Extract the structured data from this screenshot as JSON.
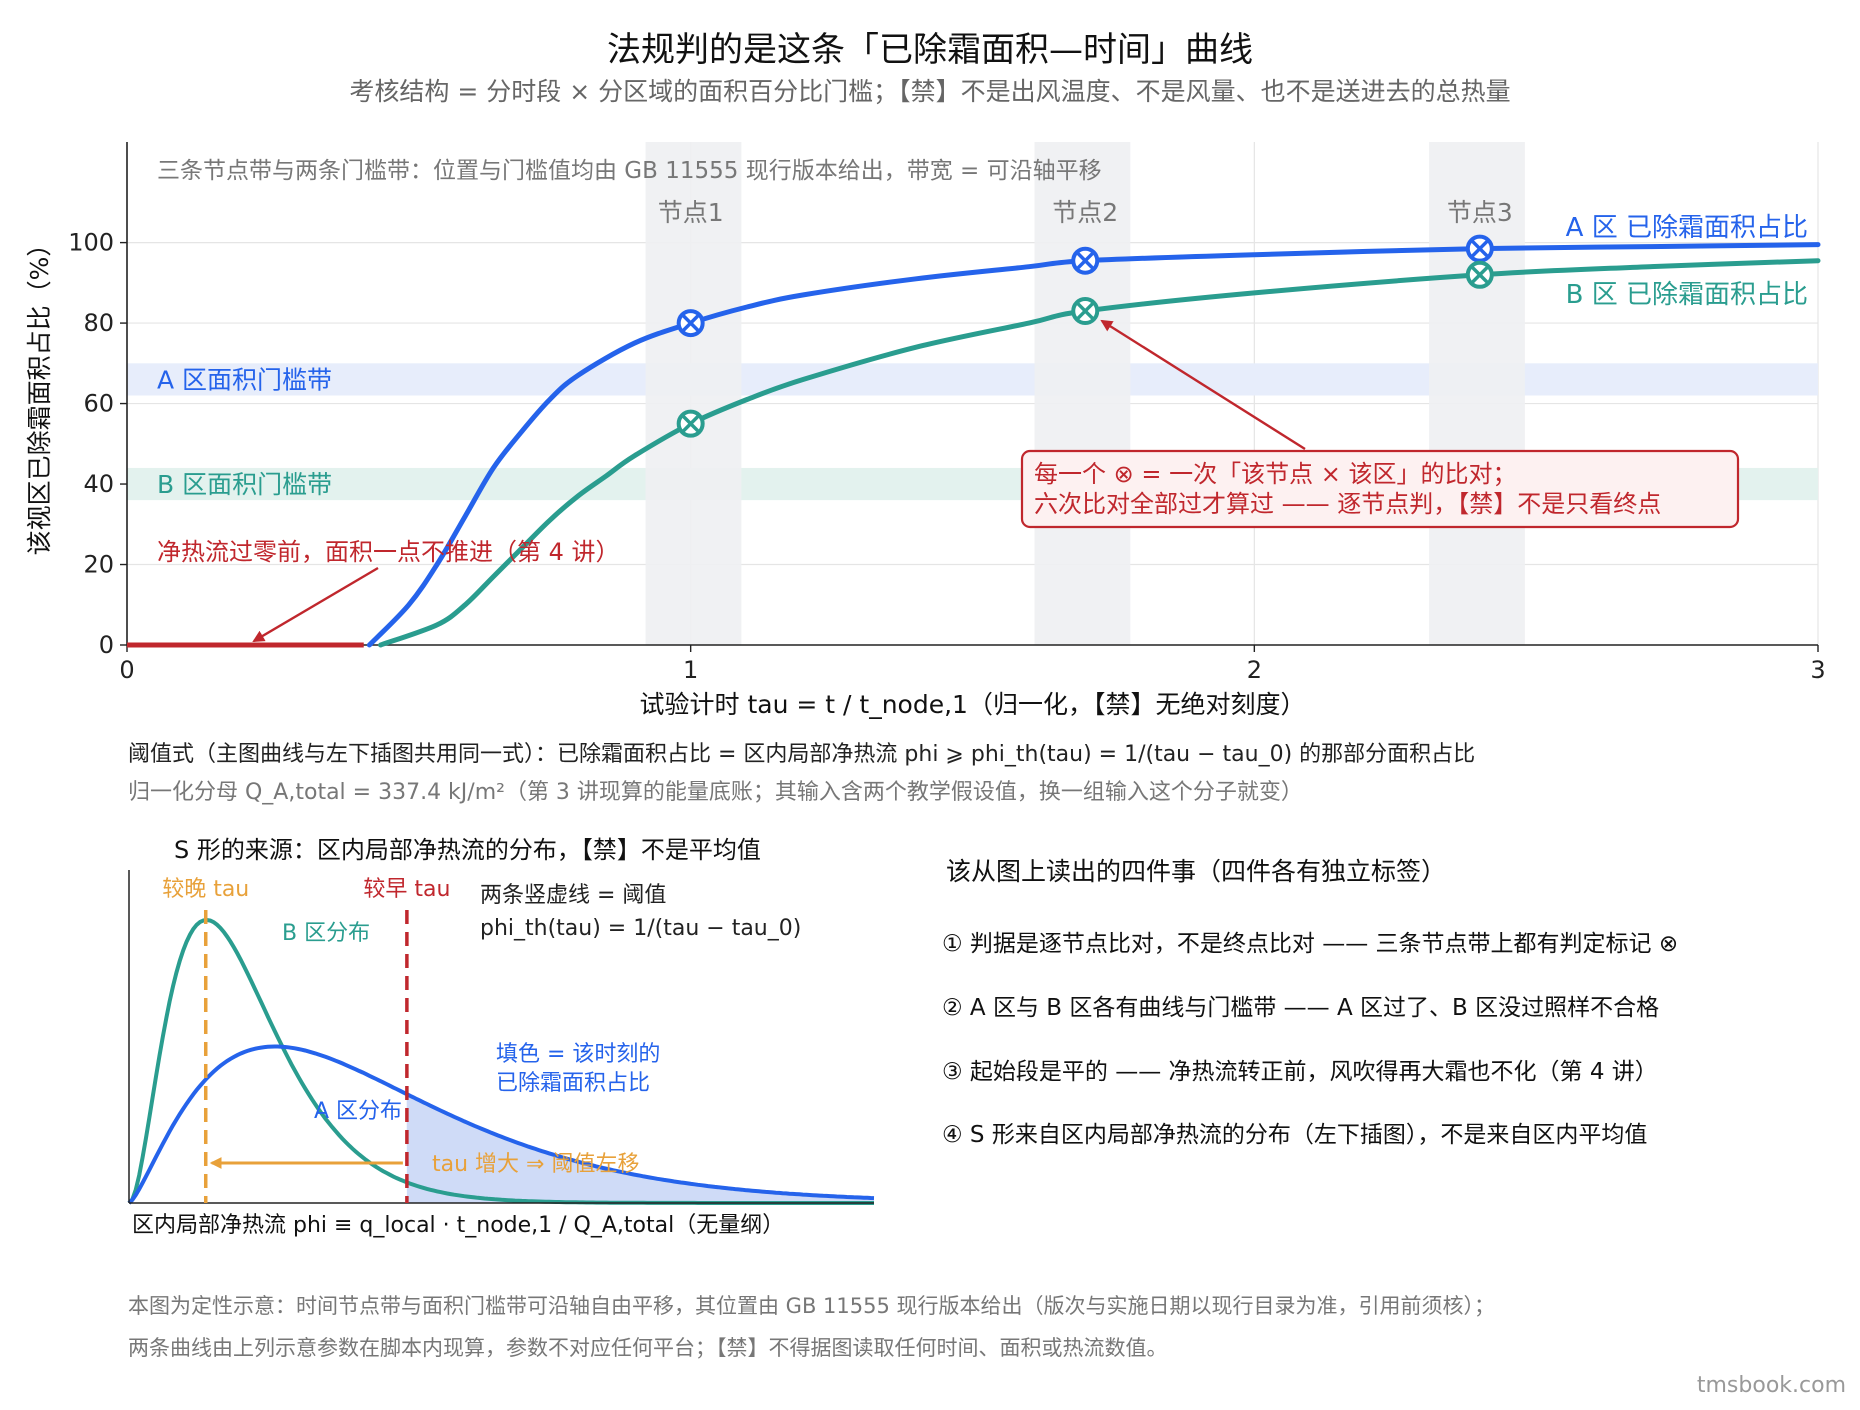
{
  "title": "法规判的是这条「已除霜面积—时间」曲线",
  "subtitle": "考核结构 = 分时段 × 分区域的面积百分比门槛；【禁】不是出风温度、不是风量、也不是送进去的总热量",
  "colors": {
    "zone_a": "#2563eb",
    "zone_b": "#2a9d8f",
    "red": "#c0272d",
    "orange": "#e8a13a",
    "band": "#eef0f2",
    "band_a": "#e7edfb",
    "band_b": "#e3f2ee",
    "fill_a": "#cad7f6",
    "axis": "#222222",
    "grid": "#e5e5e5"
  },
  "chart_data": [
    {
      "type": "line",
      "title": "",
      "xlabel": "试验计时 tau = t / t_node,1（归一化，【禁】无绝对刻度）",
      "ylabel": "该视区已除霜面积占比（%）",
      "xlim": [
        0,
        3
      ],
      "ylim": [
        0,
        125
      ],
      "x_ticks": [
        0,
        1,
        2,
        3
      ],
      "y_ticks": [
        0,
        20,
        40,
        60,
        80,
        100
      ],
      "grid": true,
      "note": "三条节点带与两条门槛带：位置与门槛值均由 GB 11555 现行版本给出，带宽 = 可沿轴平移",
      "node_bands": [
        {
          "label": "节点1",
          "x_center": 1.0,
          "x_range": [
            0.92,
            1.09
          ]
        },
        {
          "label": "节点2",
          "x_center": 1.7,
          "x_range": [
            1.61,
            1.78
          ]
        },
        {
          "label": "节点3",
          "x_center": 2.4,
          "x_range": [
            2.31,
            2.48
          ]
        }
      ],
      "threshold_bands": [
        {
          "label": "A 区面积门槛带",
          "y_range": [
            62,
            70
          ],
          "color_key": "band_a",
          "text_color_key": "zone_a"
        },
        {
          "label": "B 区面积门槛带",
          "y_range": [
            36,
            44
          ],
          "color_key": "band_b",
          "text_color_key": "zone_b"
        }
      ],
      "series": [
        {
          "name": "A 区 已除霜面积占比",
          "color_key": "zone_a",
          "x": [
            0.43,
            0.5,
            0.55,
            0.6,
            0.65,
            0.7,
            0.75,
            0.8,
            0.9,
            1.0,
            1.1,
            1.2,
            1.4,
            1.6,
            1.7,
            2.0,
            2.4,
            2.7,
            3.0
          ],
          "y": [
            0,
            10,
            20,
            32,
            44,
            53,
            61,
            67,
            75,
            80,
            84,
            87,
            91,
            94,
            95.5,
            97,
            98.5,
            99,
            99.5
          ]
        },
        {
          "name": "B 区 已除霜面积占比",
          "color_key": "zone_b",
          "x": [
            0.45,
            0.55,
            0.6,
            0.65,
            0.7,
            0.75,
            0.8,
            0.85,
            0.9,
            1.0,
            1.1,
            1.2,
            1.4,
            1.6,
            1.7,
            2.0,
            2.4,
            2.7,
            3.0
          ],
          "y": [
            0,
            5,
            10,
            17,
            24,
            31,
            37,
            42,
            47,
            55,
            61,
            66,
            74,
            80,
            83,
            87.5,
            92,
            94,
            95.5
          ]
        }
      ],
      "markers": [
        {
          "series": 0,
          "x": 1.0,
          "y": 80
        },
        {
          "series": 0,
          "x": 1.7,
          "y": 95.5
        },
        {
          "series": 0,
          "x": 2.4,
          "y": 98.5
        },
        {
          "series": 1,
          "x": 1.0,
          "y": 55
        },
        {
          "series": 1,
          "x": 1.7,
          "y": 83
        },
        {
          "series": 1,
          "x": 2.4,
          "y": 92
        }
      ],
      "flat_segment": {
        "x": [
          0,
          0.42
        ],
        "y": 0
      },
      "annotations": {
        "flat": "净热流过零前，面积一点不推进（第 4 讲）",
        "box_line1": "每一个 ⊗ = 一次「该节点 × 该区」的比对；",
        "box_line2": "六次比对全部过才算过 —— 逐节点判，【禁】不是只看终点"
      }
    },
    {
      "type": "line",
      "title": "S 形的来源：区内局部净热流的分布，【禁】不是平均值",
      "xlabel": "区内局部净热流 phi ≡ q_local · t_node,1 / Q_A,total（无量纲）",
      "ylabel": "",
      "series": [
        {
          "name": "B 区分布",
          "color_key": "zone_b"
        },
        {
          "name": "A 区分布",
          "color_key": "zone_a"
        }
      ],
      "late_label": "较晚 tau",
      "early_label": "较早 tau",
      "threshold_note_1": "两条竖虚线 = 阈值",
      "threshold_note_2": "phi_th(tau) = 1/(tau − tau_0)",
      "fill_label_1": "填色 = 该时刻的",
      "fill_label_2": "已除霜面积占比",
      "arrow_label": "tau 增大 ⇒ 阈值左移"
    }
  ],
  "formula": {
    "line1": "阈值式（主图曲线与左下插图共用同一式）：已除霜面积占比 = 区内局部净热流 phi ⩾ phi_th(tau) = 1/(tau − tau_0) 的那部分面积占比",
    "line2": "归一化分母 Q_A,total = 337.4 kJ/m²（第 3 讲现算的能量底账；其输入含两个教学假设值，换一组输入这个分子就变）"
  },
  "takeaways": {
    "title": "该从图上读出的四件事（四件各有独立标签）",
    "items": [
      "① 判据是逐节点比对，不是终点比对 —— 三条节点带上都有判定标记 ⊗",
      "② A 区与 B 区各有曲线与门槛带 —— A 区过了、B 区没过照样不合格",
      "③ 起始段是平的 —— 净热流转正前，风吹得再大霜也不化（第 4 讲）",
      "④ S 形来自区内局部净热流的分布（左下插图），不是来自区内平均值"
    ]
  },
  "footnote": {
    "line1": "本图为定性示意：时间节点带与面积门槛带可沿轴自由平移，其位置由 GB 11555 现行版本给出（版次与实施日期以现行目录为准，引用前须核）；",
    "line2": "两条曲线由上列示意参数在脚本内现算，参数不对应任何平台；【禁】不得据图读取任何时间、面积或热流数值。"
  },
  "watermark": "tmsbook.com"
}
